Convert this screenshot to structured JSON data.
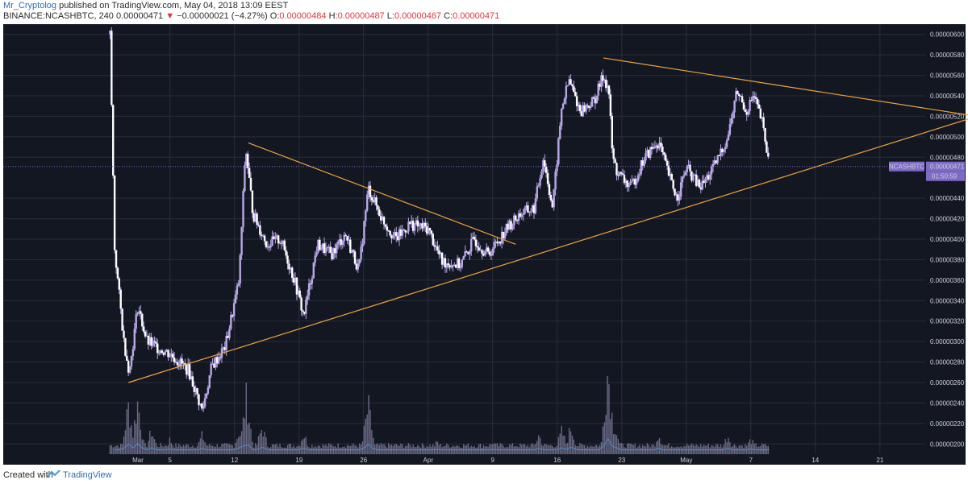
{
  "header": {
    "author": "Mr_Cryptolog",
    "published": "published on TradingView.com, May 04, 2018 13:09 EEST",
    "symbol_line": "BINANCE:NCASHBTC, 240",
    "last": "0.00000471",
    "change_arrow": "▼",
    "change": "−0.00000021 (−4.27%)",
    "o_label": "O:",
    "o_value": "0.00000484",
    "h_label": "H:",
    "h_value": "0.00000487",
    "l_label": "L:",
    "l_value": "0.00000467",
    "c_label": "C:",
    "c_value": "0.00000471"
  },
  "footer": {
    "created": "Created with",
    "brand": "TradingView"
  },
  "price_tag": {
    "symbol": "NCASHBTC",
    "value": "0.00000471",
    "countdown": "01:50:59"
  },
  "colors": {
    "background": "#131722",
    "grid": "#2a2e39",
    "candle": "#b8a8e8",
    "trendline": "#f2a23a",
    "volume": "#7b7896",
    "volume_ma": "#4b8fce",
    "tag": "#7e6bc7"
  },
  "chart_data": {
    "type": "candlestick",
    "ylim": [
      1.9e-06,
      6.1e-06
    ],
    "y_ticks": [
      "0.00000600",
      "0.00000580",
      "0.00000560",
      "0.00000540",
      "0.00000520",
      "0.00000500",
      "0.00000480",
      "0.00000440",
      "0.00000420",
      "0.00000400",
      "0.00000380",
      "0.00000360",
      "0.00000340",
      "0.00000320",
      "0.00000300",
      "0.00000280",
      "0.00000260",
      "0.00000240",
      "0.00000220",
      "0.00000200"
    ],
    "x_ticks": [
      "Mar",
      "5",
      "12",
      "19",
      "26",
      "Apr",
      "9",
      "16",
      "23",
      "May",
      "7",
      "14",
      "21"
    ],
    "price_path": [
      {
        "day": 26.5,
        "price": 6e-06
      },
      {
        "day": 27.0,
        "price": 3.9e-06
      },
      {
        "day": 28.0,
        "price": 3e-06
      },
      {
        "day": 28.6,
        "price": 2.7e-06
      },
      {
        "day": 29.5,
        "price": 3.35e-06
      },
      {
        "day": 30.5,
        "price": 3e-06
      },
      {
        "day": 31.5,
        "price": 2.95e-06
      },
      {
        "day": 33.0,
        "price": 2.88e-06
      },
      {
        "day": 35.0,
        "price": 2.72e-06
      },
      {
        "day": 36.5,
        "price": 2.32e-06
      },
      {
        "day": 37.5,
        "price": 2.75e-06
      },
      {
        "day": 39.0,
        "price": 2.95e-06
      },
      {
        "day": 40.5,
        "price": 3.6e-06
      },
      {
        "day": 41.2,
        "price": 4.9e-06
      },
      {
        "day": 42.0,
        "price": 4.25e-06
      },
      {
        "day": 43.5,
        "price": 3.95e-06
      },
      {
        "day": 45.0,
        "price": 4e-06
      },
      {
        "day": 46.5,
        "price": 3.6e-06
      },
      {
        "day": 47.5,
        "price": 3.25e-06
      },
      {
        "day": 49.0,
        "price": 3.95e-06
      },
      {
        "day": 50.5,
        "price": 3.85e-06
      },
      {
        "day": 52.0,
        "price": 4.05e-06
      },
      {
        "day": 53.5,
        "price": 3.7e-06
      },
      {
        "day": 54.5,
        "price": 4.5e-06
      },
      {
        "day": 56.0,
        "price": 4.2e-06
      },
      {
        "day": 57.5,
        "price": 4e-06
      },
      {
        "day": 59.0,
        "price": 4.15e-06
      },
      {
        "day": 61.0,
        "price": 4.1e-06
      },
      {
        "day": 62.5,
        "price": 3.78e-06
      },
      {
        "day": 64.5,
        "price": 3.75e-06
      },
      {
        "day": 66.0,
        "price": 4e-06
      },
      {
        "day": 67.5,
        "price": 3.85e-06
      },
      {
        "day": 69.5,
        "price": 4.1e-06
      },
      {
        "day": 71.0,
        "price": 4.25e-06
      },
      {
        "day": 72.5,
        "price": 4.3e-06
      },
      {
        "day": 73.5,
        "price": 4.8e-06
      },
      {
        "day": 74.5,
        "price": 4.3e-06
      },
      {
        "day": 75.5,
        "price": 5.3e-06
      },
      {
        "day": 76.3,
        "price": 5.55e-06
      },
      {
        "day": 77.5,
        "price": 5.25e-06
      },
      {
        "day": 79.0,
        "price": 5.35e-06
      },
      {
        "day": 80.0,
        "price": 5.6e-06
      },
      {
        "day": 80.6,
        "price": 5.45e-06
      },
      {
        "day": 81.0,
        "price": 4.8e-06
      },
      {
        "day": 81.5,
        "price": 4.65e-06
      },
      {
        "day": 83.0,
        "price": 4.5e-06
      },
      {
        "day": 84.5,
        "price": 4.8e-06
      },
      {
        "day": 86.0,
        "price": 4.95e-06
      },
      {
        "day": 87.0,
        "price": 4.65e-06
      },
      {
        "day": 88.0,
        "price": 4.4e-06
      },
      {
        "day": 89.0,
        "price": 4.7e-06
      },
      {
        "day": 90.5,
        "price": 4.5e-06
      },
      {
        "day": 92.0,
        "price": 4.7e-06
      },
      {
        "day": 93.5,
        "price": 5e-06
      },
      {
        "day": 94.5,
        "price": 5.45e-06
      },
      {
        "day": 95.5,
        "price": 5.25e-06
      },
      {
        "day": 96.3,
        "price": 5.4e-06
      },
      {
        "day": 97.2,
        "price": 5.15e-06
      },
      {
        "day": 98.0,
        "price": 4.71e-06
      }
    ],
    "volume_bars": [
      {
        "day": 26.5,
        "volume": 0.05
      },
      {
        "day": 28.5,
        "volume": 0.55
      },
      {
        "day": 29.5,
        "volume": 0.6
      },
      {
        "day": 31.0,
        "volume": 0.25
      },
      {
        "day": 33.0,
        "volume": 0.15
      },
      {
        "day": 36.5,
        "volume": 0.2
      },
      {
        "day": 40.5,
        "volume": 0.25
      },
      {
        "day": 41.3,
        "volume": 0.65
      },
      {
        "day": 43.0,
        "volume": 0.3
      },
      {
        "day": 47.5,
        "volume": 0.22
      },
      {
        "day": 54.5,
        "volume": 0.55
      },
      {
        "day": 62.0,
        "volume": 0.12
      },
      {
        "day": 68.0,
        "volume": 0.12
      },
      {
        "day": 73.0,
        "volume": 0.2
      },
      {
        "day": 75.5,
        "volume": 0.25
      },
      {
        "day": 76.5,
        "volume": 0.3
      },
      {
        "day": 80.5,
        "volume": 1.0
      },
      {
        "day": 81.2,
        "volume": 0.35
      },
      {
        "day": 86.0,
        "volume": 0.22
      },
      {
        "day": 93.5,
        "volume": 0.2
      },
      {
        "day": 96.0,
        "volume": 0.15
      }
    ],
    "trendlines": [
      {
        "from": {
          "day": 28.5,
          "price": 2.6e-06
        },
        "to": {
          "day": 120.5,
          "price": 5.2e-06
        }
      },
      {
        "from": {
          "day": 80.0,
          "price": 5.77e-06
        },
        "to": {
          "day": 120.5,
          "price": 5.2e-06
        }
      },
      {
        "from": {
          "day": 41.5,
          "price": 4.94e-06
        },
        "to": {
          "day": 70.5,
          "price": 3.95e-06
        }
      }
    ]
  }
}
